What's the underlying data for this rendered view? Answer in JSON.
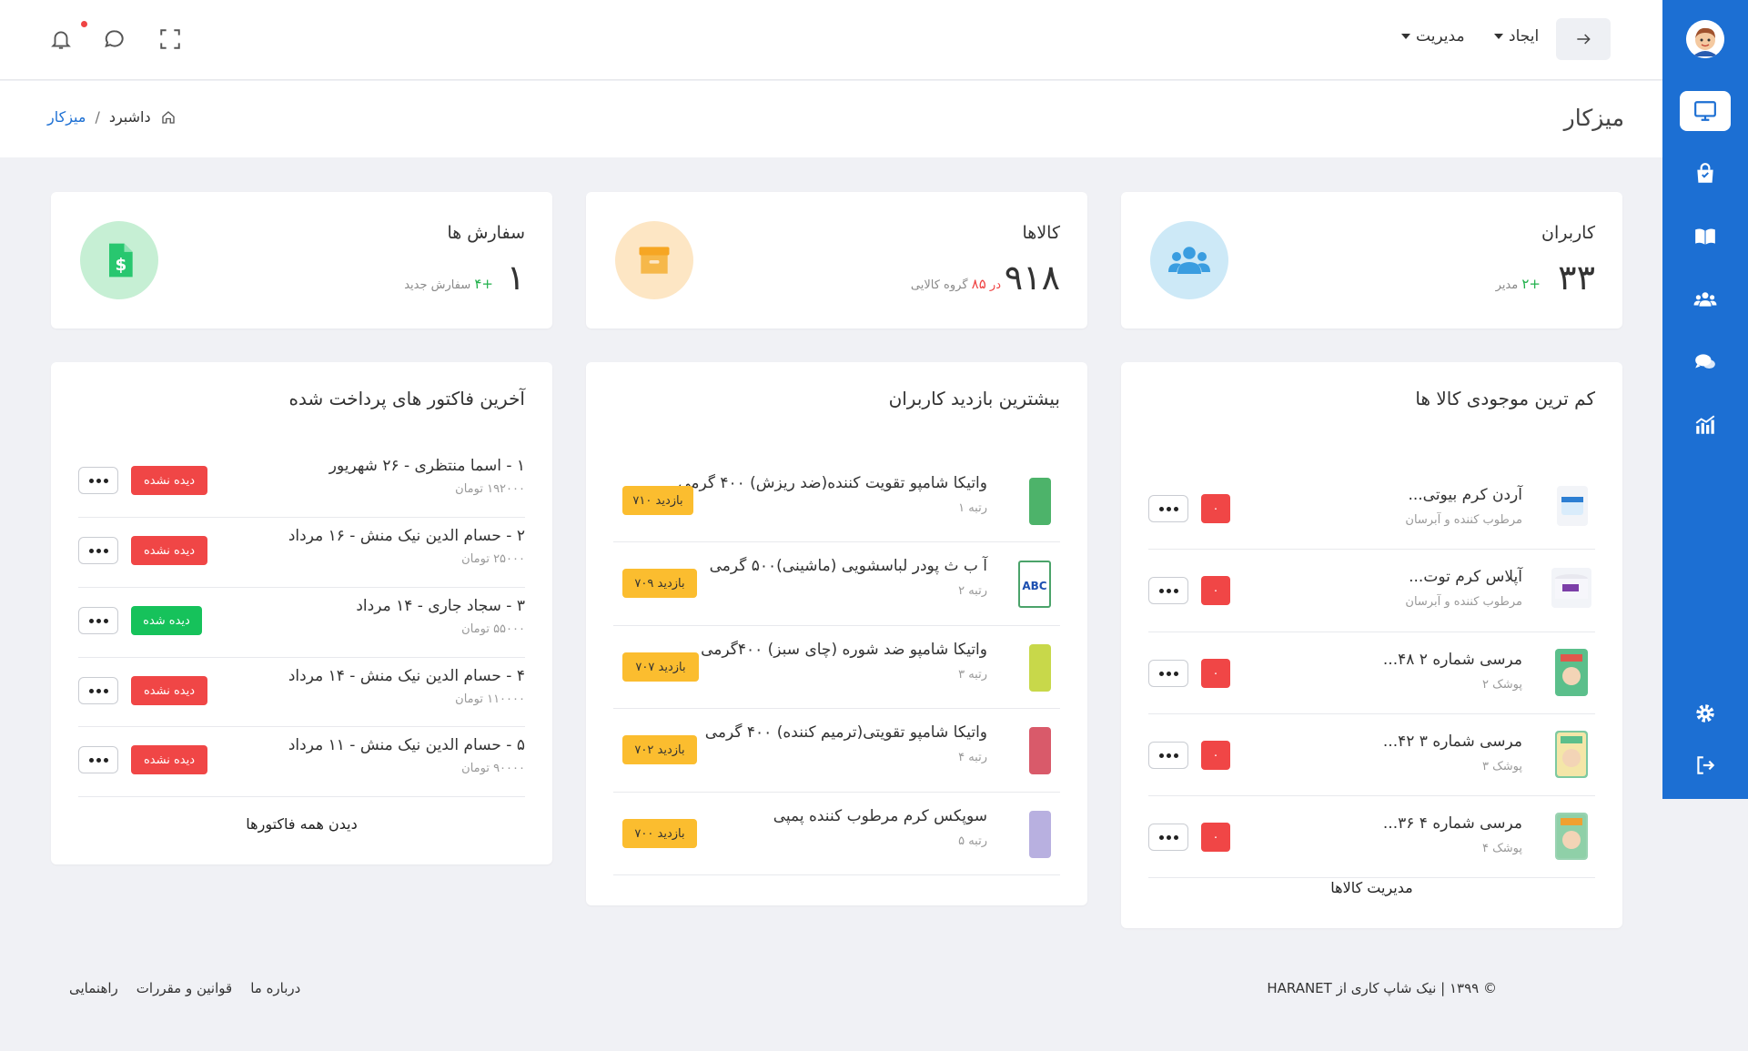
{
  "topbar": {
    "menus": [
      {
        "label": "ایجاد"
      },
      {
        "label": "مدیریت"
      }
    ]
  },
  "breadcrumb": {
    "page_title": "میزکار",
    "items": [
      "داشبرد",
      "میزکار"
    ],
    "separator": "/"
  },
  "stats": {
    "users": {
      "title": "کاربران",
      "value": "۳۳",
      "delta": "+۲",
      "delta_label": "مدیر"
    },
    "products": {
      "title": "کالاها",
      "value": "۹۱۸",
      "group_prefix": "در",
      "group_count": "۸۵",
      "group_label": "گروه کالایی"
    },
    "orders": {
      "title": "سفارش ها",
      "value": "۱",
      "delta": "+۴",
      "delta_label": "سفارش جدید"
    }
  },
  "low_stock": {
    "title": "کم ترین موجودی کالا ها",
    "items": [
      {
        "name": "آردن کرم بیوتی...",
        "category": "مرطوب کننده و آبرسان",
        "count": "۰"
      },
      {
        "name": "آپلاس کرم توت...",
        "category": "مرطوب کننده و آبرسان",
        "count": "۰"
      },
      {
        "name": "مرسی شماره ۲ ۴۸...",
        "category": "پوشک ۲",
        "count": "۰"
      },
      {
        "name": "مرسی شماره ۳ ۴۲...",
        "category": "پوشک ۳",
        "count": "۰"
      },
      {
        "name": "مرسی شماره ۴ ۳۶...",
        "category": "پوشک ۴",
        "count": "۰"
      }
    ],
    "link": "مدیریت کالاها"
  },
  "most_viewed": {
    "title": "بیشترین بازدید کاربران",
    "items": [
      {
        "name": "واتیکا شامپو تقویت کننده(ضد ریزش) ۴۰۰ گرمی",
        "rank": "رتبه ۱",
        "views": "۷۱۰ بازدید"
      },
      {
        "name": "آ ب ث پودر لباسشویی (ماشینی)۵۰۰ گرمی",
        "rank": "رتبه ۲",
        "views": "۷۰۹ بازدید"
      },
      {
        "name": "واتیکا شامپو ضد شوره (چای سبز) ۴۰۰گرمی",
        "rank": "رتبه ۳",
        "views": "۷۰۷ بازدید"
      },
      {
        "name": "واتیکا شامپو تقویتی(ترمیم کننده) ۴۰۰ گرمی",
        "rank": "رتبه ۴",
        "views": "۷۰۲ بازدید"
      },
      {
        "name": "سوپکس کرم مرطوب کننده پمپی",
        "rank": "رتبه ۵",
        "views": "۷۰۰ بازدید"
      }
    ]
  },
  "invoices": {
    "title": "آخرین فاکتور های پرداخت شده",
    "items": [
      {
        "title": "۱ - اسما منتظری - ۲۶ شهریور",
        "amount": "۱۹۲۰۰۰ تومان",
        "status": "دیده نشده",
        "seen": false
      },
      {
        "title": "۲ - حسام الدین نیک منش - ۱۶ مرداد",
        "amount": "۲۵۰۰۰ تومان",
        "status": "دیده نشده",
        "seen": false
      },
      {
        "title": "۳ - سجاد جاری - ۱۴ مرداد",
        "amount": "۵۵۰۰۰ تومان",
        "status": "دیده شده",
        "seen": true
      },
      {
        "title": "۴ - حسام الدین نیک منش - ۱۴ مرداد",
        "amount": "۱۱۰۰۰۰ تومان",
        "status": "دیده نشده",
        "seen": false
      },
      {
        "title": "۵ - حسام الدین نیک منش - ۱۱ مرداد",
        "amount": "۹۰۰۰۰ تومان",
        "status": "دیده نشده",
        "seen": false
      }
    ],
    "link": "دیدن همه فاکتورها"
  },
  "footer": {
    "copyright": "© ۱۳۹۹ | نیک شاپ کاری از HARANET",
    "links": [
      "درباره ما",
      "قوانین و مقررات",
      "راهنمایی"
    ]
  },
  "colors": {
    "primary": "#1c6fd3",
    "danger": "#f04646",
    "success": "#16c25b",
    "warning": "#fbbd2f",
    "users_circle": "#cde9f7",
    "products_circle": "#fde6c4",
    "orders_circle": "#c6efd4"
  }
}
